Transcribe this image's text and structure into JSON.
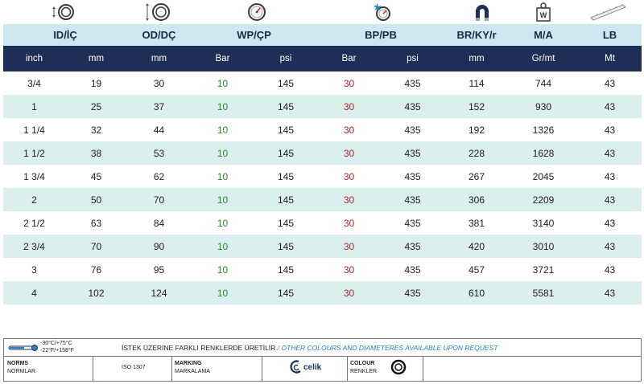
{
  "icons": {
    "col1": "inner-diameter-icon",
    "col2": "outer-diameter-icon",
    "col3": "pressure-gauge-icon",
    "col4": "burst-icon",
    "col5": "bend-radius-icon",
    "col6": "weight-icon",
    "col7": "length-icon",
    "weight_letter": "W"
  },
  "header": {
    "id": "ID/İÇ",
    "od": "OD/DÇ",
    "wp": "WP/ÇP",
    "bp": "BP/PB",
    "br": "BR/KY/r",
    "ma": "M/A",
    "lb": "LB"
  },
  "units": {
    "inch": "inch",
    "id_mm": "mm",
    "od_mm": "mm",
    "wp_bar": "Bar",
    "wp_psi": "psi",
    "bp_bar": "Bar",
    "bp_psi": "psi",
    "br_mm": "mm",
    "ma": "Gr/mt",
    "lb": "Mt"
  },
  "rows": [
    {
      "inch": "3/4",
      "id": "19",
      "od": "30",
      "wp_bar": "10",
      "wp_psi": "145",
      "bp_bar": "30",
      "bp_psi": "435",
      "br": "114",
      "ma": "744",
      "lb": "43"
    },
    {
      "inch": "1",
      "id": "25",
      "od": "37",
      "wp_bar": "10",
      "wp_psi": "145",
      "bp_bar": "30",
      "bp_psi": "435",
      "br": "152",
      "ma": "930",
      "lb": "43"
    },
    {
      "inch": "1 1/4",
      "id": "32",
      "od": "44",
      "wp_bar": "10",
      "wp_psi": "145",
      "bp_bar": "30",
      "bp_psi": "435",
      "br": "192",
      "ma": "1326",
      "lb": "43"
    },
    {
      "inch": "1 1/2",
      "id": "38",
      "od": "53",
      "wp_bar": "10",
      "wp_psi": "145",
      "bp_bar": "30",
      "bp_psi": "435",
      "br": "228",
      "ma": "1628",
      "lb": "43"
    },
    {
      "inch": "1 3/4",
      "id": "45",
      "od": "62",
      "wp_bar": "10",
      "wp_psi": "145",
      "bp_bar": "30",
      "bp_psi": "435",
      "br": "267",
      "ma": "2045",
      "lb": "43"
    },
    {
      "inch": "2",
      "id": "50",
      "od": "70",
      "wp_bar": "10",
      "wp_psi": "145",
      "bp_bar": "30",
      "bp_psi": "435",
      "br": "306",
      "ma": "2209",
      "lb": "43"
    },
    {
      "inch": "2 1/2",
      "id": "63",
      "od": "84",
      "wp_bar": "10",
      "wp_psi": "145",
      "bp_bar": "30",
      "bp_psi": "435",
      "br": "381",
      "ma": "3140",
      "lb": "43"
    },
    {
      "inch": "2 3/4",
      "id": "70",
      "od": "90",
      "wp_bar": "10",
      "wp_psi": "145",
      "bp_bar": "30",
      "bp_psi": "435",
      "br": "420",
      "ma": "3010",
      "lb": "43"
    },
    {
      "inch": "3",
      "id": "76",
      "od": "95",
      "wp_bar": "10",
      "wp_psi": "145",
      "bp_bar": "30",
      "bp_psi": "435",
      "br": "457",
      "ma": "3721",
      "lb": "43"
    },
    {
      "inch": "4",
      "id": "102",
      "od": "124",
      "wp_bar": "10",
      "wp_psi": "145",
      "bp_bar": "30",
      "bp_psi": "435",
      "br": "610",
      "ma": "5581",
      "lb": "43"
    }
  ],
  "colors": {
    "header_light": "#cfe8ef",
    "header_dark": "#1f2e57",
    "row_alt": "#dcefef",
    "wp_value": "#2e8a2e",
    "bp_value": "#b0262a"
  },
  "footer": {
    "temp_c": "-30°C/+75°C",
    "temp_f": "-22°F/+158°F",
    "note_tr": "İSTEK ÜZERİNE FARKLI RENKLERDE ÜRETİLİR",
    "note_sep": " / ",
    "note_en": "OTHER COLOURS AND DIAMETERES AVAILABLE UPON REQUEST",
    "norms_en": "NORMS",
    "norms_tr": "NORMLAR",
    "norm_value": "ISO 1307",
    "marking_en": "MARKING",
    "marking_tr": "MARKALAMA",
    "brand": "celik",
    "colour_en": "COLOUR",
    "colour_tr": "RENKLER"
  }
}
